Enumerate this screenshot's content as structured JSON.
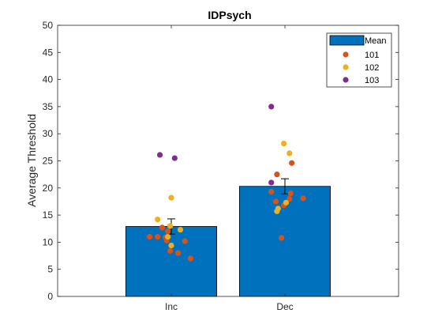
{
  "chart_data": {
    "type": "bar",
    "title": "IDPsych",
    "xlabel": "",
    "ylabel": "Average Threshold",
    "categories": [
      "Inc",
      "Dec"
    ],
    "ylim": [
      0,
      50
    ],
    "yticks": [
      0,
      5,
      10,
      15,
      20,
      25,
      30,
      35,
      40,
      45,
      50
    ],
    "grid": false,
    "legend_position": "top-right",
    "bars": {
      "name": "Mean",
      "color": "#0072BD",
      "values": [
        12.9,
        20.3
      ],
      "error": [
        1.4,
        1.4
      ]
    },
    "scatter": [
      {
        "name": "101",
        "color": "#D95319",
        "points": [
          [
            0.81,
            11.0
          ],
          [
            0.88,
            11.0
          ],
          [
            0.92,
            12.7
          ],
          [
            0.95,
            10.9
          ],
          [
            0.96,
            10.3
          ],
          [
            0.97,
            12.0
          ],
          [
            0.99,
            8.4
          ],
          [
            1.06,
            8.0
          ],
          [
            1.12,
            10.2
          ],
          [
            1.17,
            7.0
          ],
          [
            1.88,
            19.3
          ],
          [
            1.92,
            17.5
          ],
          [
            1.93,
            22.5
          ],
          [
            1.97,
            10.8
          ],
          [
            2.04,
            18.0
          ],
          [
            2.05,
            19.0
          ],
          [
            2.06,
            24.6
          ],
          [
            2.16,
            18.1
          ],
          [
            1.99,
            16.8
          ]
        ]
      },
      {
        "name": "102",
        "color": "#EDB120",
        "points": [
          [
            0.88,
            14.2
          ],
          [
            0.99,
            13.0
          ],
          [
            1.0,
            18.2
          ],
          [
            1.0,
            9.4
          ],
          [
            1.08,
            12.3
          ],
          [
            0.97,
            11.0
          ],
          [
            1.93,
            15.7
          ],
          [
            1.94,
            16.2
          ],
          [
            1.99,
            28.2
          ],
          [
            2.01,
            17.3
          ],
          [
            2.04,
            26.4
          ]
        ]
      },
      {
        "name": "103",
        "color": "#7E2F8E",
        "points": [
          [
            0.9,
            26.1
          ],
          [
            1.03,
            25.5
          ],
          [
            1.88,
            35.0
          ],
          [
            1.88,
            21.0
          ]
        ]
      }
    ]
  }
}
